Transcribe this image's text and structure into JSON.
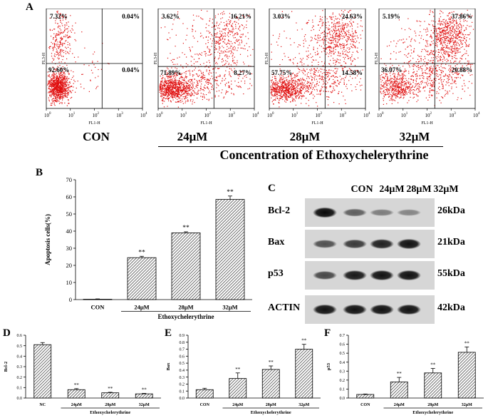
{
  "panel_labels": {
    "A": "A",
    "B": "B",
    "C": "C",
    "D": "D",
    "E": "E",
    "F": "F"
  },
  "flow": {
    "axis_x_label": "FL1-H",
    "axis_y_label": "FL3-H",
    "x_ticks": [
      "10",
      "1",
      "10",
      "2",
      "10",
      "3",
      "10",
      "4",
      "10",
      "0"
    ],
    "panels": [
      {
        "name": "CON",
        "q_ul": "7.32%",
        "q_ur": "0.04%",
        "q_ll": "92.60%",
        "q_lr": "0.04%"
      },
      {
        "name": "24μM",
        "q_ul": "3.62%",
        "q_ur": "16.21%",
        "q_ll": "71.89%",
        "q_lr": "8.27%"
      },
      {
        "name": "28μM",
        "q_ul": "3.03%",
        "q_ur": "24.63%",
        "q_ll": "57.75%",
        "q_lr": "14.58%"
      },
      {
        "name": "32μM",
        "q_ul": "5.19%",
        "q_ur": "37.86%",
        "q_ll": "36.07%",
        "q_lr": "20.88%"
      }
    ],
    "concentration_title": "Concentration of Ethoxychelerythrine"
  },
  "chart_data": [
    {
      "id": "B",
      "type": "bar",
      "categories": [
        "CON",
        "24μM",
        "28μM",
        "32μM"
      ],
      "values": [
        0.2,
        24.5,
        39,
        58.5
      ],
      "errors": [
        0.2,
        0.8,
        0.6,
        2
      ],
      "significance": [
        "",
        "**",
        "**",
        "**"
      ],
      "ylabel": "Apoptosis cells(%)",
      "xlabel": "Ethoxychelerythrine",
      "ylim": [
        0,
        70
      ],
      "yticks": [
        0,
        10,
        20,
        30,
        40,
        50,
        60,
        70
      ]
    },
    {
      "id": "D",
      "type": "bar",
      "categories": [
        "NC",
        "24μM",
        "28μM",
        "32μM"
      ],
      "values": [
        0.51,
        0.08,
        0.05,
        0.04
      ],
      "errors": [
        0.02,
        0.01,
        0.005,
        0.005
      ],
      "significance": [
        "",
        "**",
        "**",
        "**"
      ],
      "ylabel": "Bcl-2",
      "xlabel": "Ethoxychelerythrine",
      "ylim": [
        0,
        0.6
      ],
      "yticks": [
        "0.0",
        "0.1",
        "0.2",
        "0.3",
        "0.4",
        "0.5",
        "0.6"
      ]
    },
    {
      "id": "E",
      "type": "bar",
      "categories": [
        "CON",
        "24μM",
        "28μM",
        "32μM"
      ],
      "values": [
        0.12,
        0.28,
        0.41,
        0.7
      ],
      "errors": [
        0.02,
        0.08,
        0.05,
        0.07
      ],
      "significance": [
        "",
        "**",
        "**",
        "**"
      ],
      "ylabel": "Bax",
      "xlabel": "Ethoxychelerythrine",
      "ylim": [
        0,
        0.9
      ],
      "yticks": [
        "0.0",
        "0.1",
        "0.2",
        "0.3",
        "0.4",
        "0.5",
        "0.6",
        "0.7",
        "0.8",
        "0.9"
      ]
    },
    {
      "id": "F",
      "type": "bar",
      "categories": [
        "CON",
        "24μM",
        "28μM",
        "32μM"
      ],
      "values": [
        0.04,
        0.18,
        0.28,
        0.51
      ],
      "errors": [
        0.005,
        0.05,
        0.05,
        0.06
      ],
      "significance": [
        "",
        "**",
        "**",
        "**"
      ],
      "ylabel": "p53",
      "xlabel": "Ethoxychelerythrine",
      "ylim": [
        0,
        0.7
      ],
      "yticks": [
        "0.0",
        "0.1",
        "0.2",
        "0.3",
        "0.4",
        "0.5",
        "0.6",
        "0.7"
      ]
    }
  ],
  "blot": {
    "columns": [
      "CON",
      "24μM",
      "28μM",
      "32μM"
    ],
    "rows": [
      {
        "name": "Bcl-2",
        "kda": "26kDa",
        "intensity": [
          1.0,
          0.45,
          0.25,
          0.2
        ]
      },
      {
        "name": "Bax",
        "kda": "21kDa",
        "intensity": [
          0.55,
          0.7,
          0.85,
          0.95
        ]
      },
      {
        "name": "p53",
        "kda": "55kDa",
        "intensity": [
          0.6,
          0.9,
          0.95,
          0.95
        ]
      },
      {
        "name": "ACTIN",
        "kda": "42kDa",
        "intensity": [
          0.95,
          0.95,
          0.95,
          0.95
        ]
      }
    ]
  }
}
